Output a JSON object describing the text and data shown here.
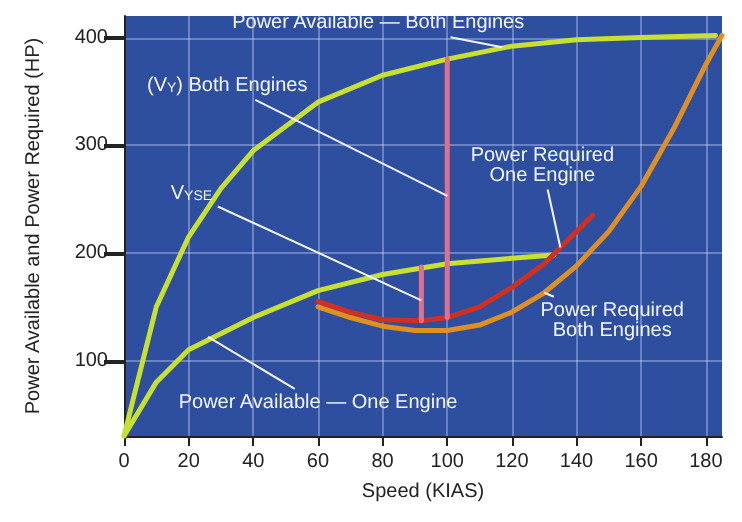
{
  "chart_data": {
    "type": "line",
    "xlabel": "Speed (KIAS)",
    "ylabel": "Power Available and Power Required (HP)",
    "xlim": [
      0,
      185
    ],
    "xticks": [
      0,
      20,
      40,
      60,
      80,
      100,
      120,
      140,
      160,
      180
    ],
    "ylim": [
      30,
      420
    ],
    "yticks": [
      100,
      200,
      300,
      400
    ],
    "grid": true,
    "marker": "none",
    "series": [
      {
        "color": "#c8e030",
        "x": [
          0,
          10,
          20,
          30,
          40,
          60,
          80,
          100,
          120,
          140,
          160,
          183
        ],
        "values": [
          30,
          150,
          215,
          260,
          295,
          340,
          365,
          380,
          392,
          398,
          400,
          402
        ]
      },
      {
        "color": "#c8e030",
        "x": [
          0,
          10,
          20,
          40,
          60,
          80,
          100,
          120,
          133
        ],
        "values": [
          30,
          80,
          110,
          140,
          165,
          180,
          190,
          195,
          198
        ]
      },
      {
        "color": "#d03020",
        "x": [
          60,
          70,
          80,
          92,
          100,
          110,
          120,
          130,
          140,
          145
        ],
        "values": [
          155,
          145,
          138,
          137,
          140,
          150,
          168,
          190,
          220,
          235
        ]
      },
      {
        "color": "#e09020",
        "x": [
          60,
          70,
          80,
          90,
          100,
          110,
          120,
          130,
          140,
          150,
          160,
          170,
          180,
          185
        ],
        "values": [
          150,
          140,
          132,
          128,
          128,
          133,
          145,
          163,
          188,
          220,
          262,
          315,
          375,
          402
        ]
      },
      {
        "color": "#e07090",
        "x": [
          92,
          92
        ],
        "values": [
          137,
          187
        ]
      },
      {
        "color": "#e07090",
        "x": [
          100,
          100
        ],
        "values": [
          140,
          380
        ]
      }
    ],
    "annotations": [
      {
        "text": "Power Available — Both Engines",
        "x": 117,
        "y": 391
      },
      {
        "text": "(V$_{Y}$) Both Engines",
        "x": 100,
        "y": 253
      },
      {
        "text": "V$_{YSE}$",
        "x": 92,
        "y": 156
      },
      {
        "text": "Power Required\nOne Engine",
        "x": 135,
        "y": 205
      },
      {
        "text": "Power Required\nBoth Engines",
        "x": 130,
        "y": 163
      },
      {
        "text": "Power Available — One Engine",
        "x": 26,
        "y": 122
      }
    ]
  }
}
